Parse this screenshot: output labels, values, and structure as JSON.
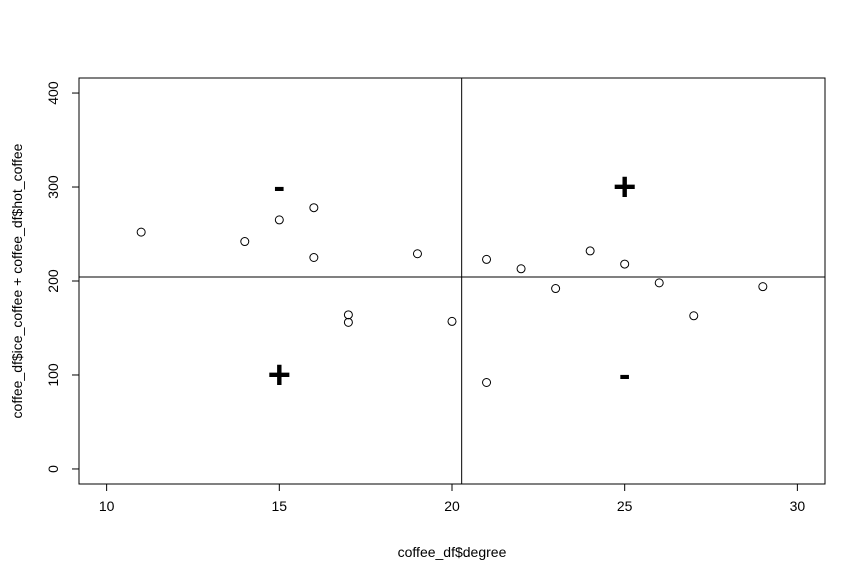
{
  "chart_data": {
    "type": "scatter",
    "title": "",
    "xlabel": "coffee_df$degree",
    "ylabel": "coffee_df$ice_coffee + coffee_df$hot_coffee",
    "xlim": [
      9.2,
      30.8
    ],
    "ylim": [
      -16,
      416
    ],
    "x_ticks": [
      10,
      15,
      20,
      25,
      30
    ],
    "y_ticks": [
      0,
      100,
      200,
      300,
      400
    ],
    "grid": false,
    "marker": "open-circle",
    "points": [
      {
        "x": 11,
        "y": 252
      },
      {
        "x": 14,
        "y": 242
      },
      {
        "x": 15,
        "y": 265
      },
      {
        "x": 16,
        "y": 278
      },
      {
        "x": 16,
        "y": 225
      },
      {
        "x": 17,
        "y": 164
      },
      {
        "x": 17,
        "y": 156
      },
      {
        "x": 19,
        "y": 229
      },
      {
        "x": 20,
        "y": 157
      },
      {
        "x": 21,
        "y": 223
      },
      {
        "x": 21,
        "y": 92
      },
      {
        "x": 22,
        "y": 213
      },
      {
        "x": 23,
        "y": 192
      },
      {
        "x": 24,
        "y": 232
      },
      {
        "x": 25,
        "y": 218
      },
      {
        "x": 26,
        "y": 198
      },
      {
        "x": 27,
        "y": 163
      },
      {
        "x": 29,
        "y": 194
      }
    ],
    "reference_lines": {
      "vertical_x": 20.28,
      "horizontal_y": 204.2
    },
    "annotations": [
      {
        "text": "-",
        "x": 15,
        "y": 300
      },
      {
        "text": "+",
        "x": 25,
        "y": 300
      },
      {
        "text": "+",
        "x": 15,
        "y": 100
      },
      {
        "text": "-",
        "x": 25,
        "y": 100
      }
    ]
  }
}
